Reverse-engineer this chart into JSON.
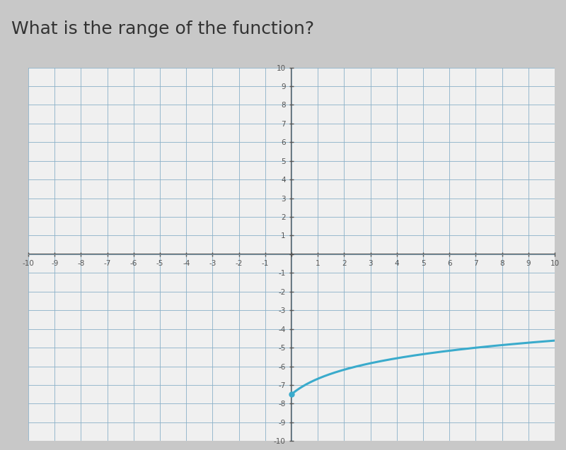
{
  "title": "What is the range of the function?",
  "title_fontsize": 18,
  "title_color": "#333333",
  "title_fontweight": "normal",
  "background_color": "#c8c8c8",
  "plot_bg_color": "#f0f0f0",
  "grid_color_major": "#8ab0c8",
  "grid_color_minor": "#b8d0e0",
  "axis_color": "#555555",
  "tick_label_color": "#555555",
  "curve_color": "#3aabcc",
  "curve_linewidth": 2.2,
  "xlim": [
    -10,
    10
  ],
  "ylim": [
    -10,
    10
  ],
  "xticks": [
    -10,
    -9,
    -8,
    -7,
    -6,
    -5,
    -4,
    -3,
    -2,
    -1,
    1,
    2,
    3,
    4,
    5,
    6,
    7,
    8,
    9,
    10
  ],
  "yticks": [
    -10,
    -9,
    -8,
    -7,
    -6,
    -5,
    -4,
    -3,
    -2,
    -1,
    1,
    2,
    3,
    4,
    5,
    6,
    7,
    8,
    9,
    10
  ],
  "curve_x_start": 0,
  "curve_x_end": 10,
  "curve_a": 1.2,
  "curve_b": -7.5,
  "closed_endpoint_x": 0,
  "closed_endpoint_y": -7.5
}
